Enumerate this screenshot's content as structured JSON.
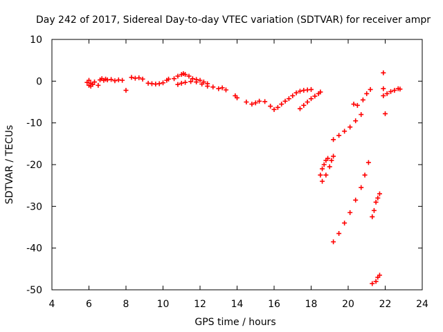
{
  "chart_data": {
    "type": "scatter",
    "title": "Day 242 of 2017, Sidereal Day-to-day VTEC variation (SDTVAR) for receiver ampr",
    "xlabel": "GPS time / hours",
    "ylabel": "SDTVAR / TECUs",
    "xlim": [
      4,
      24
    ],
    "ylim": [
      -50,
      10
    ],
    "x_ticks": [
      4,
      6,
      8,
      10,
      12,
      14,
      16,
      18,
      20,
      22,
      24
    ],
    "y_ticks": [
      10,
      0,
      -10,
      -20,
      -30,
      -40,
      -50
    ],
    "x_tick_labels": [
      "4",
      "6",
      "8",
      "10",
      "12",
      "14",
      "16",
      "18",
      "20",
      "22",
      "24"
    ],
    "y_tick_labels": [
      "10",
      "0",
      "-10",
      "-20",
      "-30",
      "-40",
      "-50"
    ],
    "grid": false,
    "marker": "plus",
    "color": "#ff0000",
    "series": [
      {
        "name": "SDTVAR",
        "points": [
          [
            5.9,
            -0.3
          ],
          [
            6.0,
            -1.0
          ],
          [
            6.0,
            0.2
          ],
          [
            6.1,
            -1.2
          ],
          [
            6.1,
            -0.5
          ],
          [
            6.2,
            -0.8
          ],
          [
            6.3,
            -0.2
          ],
          [
            6.5,
            -1.0
          ],
          [
            6.6,
            0.3
          ],
          [
            6.7,
            0.6
          ],
          [
            6.8,
            0.2
          ],
          [
            6.9,
            0.5
          ],
          [
            7.0,
            0.3
          ],
          [
            7.2,
            0.4
          ],
          [
            7.4,
            0.1
          ],
          [
            7.6,
            0.3
          ],
          [
            7.8,
            0.2
          ],
          [
            8.0,
            -2.2
          ],
          [
            8.3,
            0.9
          ],
          [
            8.5,
            0.7
          ],
          [
            8.7,
            0.8
          ],
          [
            8.9,
            0.5
          ],
          [
            9.2,
            -0.5
          ],
          [
            9.4,
            -0.6
          ],
          [
            9.6,
            -0.7
          ],
          [
            9.8,
            -0.6
          ],
          [
            10.0,
            -0.4
          ],
          [
            10.2,
            0.2
          ],
          [
            10.3,
            0.5
          ],
          [
            10.6,
            0.6
          ],
          [
            10.8,
            1.2
          ],
          [
            11.0,
            1.6
          ],
          [
            11.1,
            1.8
          ],
          [
            11.2,
            1.6
          ],
          [
            11.4,
            1.2
          ],
          [
            11.6,
            0.6
          ],
          [
            11.8,
            0.4
          ],
          [
            12.0,
            0.2
          ],
          [
            12.2,
            -0.2
          ],
          [
            12.4,
            -0.6
          ],
          [
            10.8,
            -0.8
          ],
          [
            11.0,
            -0.5
          ],
          [
            11.2,
            -0.3
          ],
          [
            11.5,
            -0.1
          ],
          [
            11.8,
            -0.2
          ],
          [
            12.1,
            -0.7
          ],
          [
            12.4,
            -1.2
          ],
          [
            12.7,
            -1.4
          ],
          [
            13.0,
            -1.8
          ],
          [
            13.2,
            -1.6
          ],
          [
            13.4,
            -2.1
          ],
          [
            13.9,
            -3.5
          ],
          [
            14.0,
            -4.0
          ],
          [
            14.5,
            -5.0
          ],
          [
            14.8,
            -5.5
          ],
          [
            15.0,
            -5.2
          ],
          [
            15.2,
            -4.8
          ],
          [
            15.5,
            -4.9
          ],
          [
            15.8,
            -6.0
          ],
          [
            16.0,
            -6.8
          ],
          [
            16.2,
            -6.3
          ],
          [
            16.4,
            -5.5
          ],
          [
            16.6,
            -4.8
          ],
          [
            16.8,
            -4.2
          ],
          [
            17.0,
            -3.5
          ],
          [
            17.2,
            -2.8
          ],
          [
            17.4,
            -2.4
          ],
          [
            17.6,
            -2.2
          ],
          [
            17.8,
            -2.1
          ],
          [
            18.0,
            -2.0
          ],
          [
            17.4,
            -6.6
          ],
          [
            17.6,
            -5.8
          ],
          [
            17.8,
            -5.0
          ],
          [
            18.0,
            -4.2
          ],
          [
            18.2,
            -3.6
          ],
          [
            18.4,
            -3.0
          ],
          [
            18.5,
            -2.6
          ],
          [
            18.5,
            -22.5
          ],
          [
            18.6,
            -21.0
          ],
          [
            18.7,
            -20.0
          ],
          [
            18.8,
            -19.0
          ],
          [
            18.9,
            -18.5
          ],
          [
            18.6,
            -24.0
          ],
          [
            18.8,
            -22.5
          ],
          [
            19.0,
            -20.5
          ],
          [
            19.1,
            -19.0
          ],
          [
            19.2,
            -18.0
          ],
          [
            19.2,
            -38.5
          ],
          [
            19.5,
            -36.5
          ],
          [
            19.8,
            -34.0
          ],
          [
            20.1,
            -31.5
          ],
          [
            20.4,
            -28.5
          ],
          [
            20.7,
            -25.5
          ],
          [
            20.9,
            -22.5
          ],
          [
            21.1,
            -19.5
          ],
          [
            19.2,
            -14.0
          ],
          [
            19.5,
            -13.0
          ],
          [
            19.8,
            -12.0
          ],
          [
            20.1,
            -11.0
          ],
          [
            20.4,
            -9.5
          ],
          [
            20.7,
            -8.0
          ],
          [
            20.3,
            -5.5
          ],
          [
            20.5,
            -5.8
          ],
          [
            20.8,
            -4.5
          ],
          [
            21.0,
            -3.0
          ],
          [
            21.2,
            -2.0
          ],
          [
            21.3,
            -32.5
          ],
          [
            21.4,
            -31.0
          ],
          [
            21.5,
            -29.0
          ],
          [
            21.6,
            -28.0
          ],
          [
            21.7,
            -27.0
          ],
          [
            21.3,
            -48.5
          ],
          [
            21.5,
            -48.0
          ],
          [
            21.6,
            -47.0
          ],
          [
            21.7,
            -46.5
          ],
          [
            21.9,
            2.0
          ],
          [
            21.9,
            -1.8
          ],
          [
            21.9,
            -3.5
          ],
          [
            22.0,
            -7.8
          ],
          [
            22.1,
            -3.0
          ],
          [
            22.3,
            -2.5
          ],
          [
            22.5,
            -2.2
          ],
          [
            22.7,
            -1.8
          ],
          [
            22.8,
            -1.9
          ]
        ]
      }
    ]
  }
}
